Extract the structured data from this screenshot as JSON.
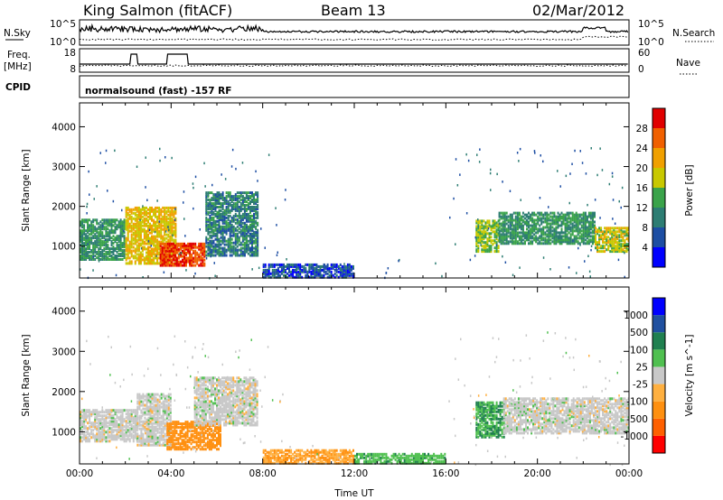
{
  "header": {
    "station": "King Salmon (fitACF)",
    "beam": "Beam 13",
    "date": "02/Mar/2012"
  },
  "top_panel": {
    "left_label": "N.Sky",
    "right_label": "N.Search",
    "left_ticks": [
      "10^5",
      "10^0"
    ],
    "right_ticks": [
      "10^5",
      "10^0"
    ]
  },
  "freq_panel": {
    "left_label_line1": "Freq.",
    "left_label_line2": "[MHz]",
    "right_label": "Nave",
    "left_ticks": [
      "18",
      "8"
    ],
    "right_ticks": [
      "60",
      "0"
    ]
  },
  "cpid_panel": {
    "label": "CPID",
    "mode": "normalsound (fast) -157 RF"
  },
  "chart_data": [
    {
      "type": "heatmap",
      "name": "Power",
      "ylabel": "Slant Range [km]",
      "ylim": [
        200,
        4600
      ],
      "yticks": [
        1000,
        2000,
        3000,
        4000
      ],
      "xlim": [
        0,
        24
      ],
      "colorbar_label": "Power [dB]",
      "colorbar_ticks": [
        "28",
        "24",
        "20",
        "16",
        "12",
        "8",
        "4"
      ],
      "colorbar_colors": [
        "#0000ff",
        "#1d4ea3",
        "#2d7d73",
        "#3aa34a",
        "#c8c800",
        "#f0a000",
        "#f06000",
        "#e00000"
      ],
      "colorbar_range": [
        0,
        32
      ],
      "echo_regions": [
        {
          "t0": 0.0,
          "t1": 2.0,
          "r0": 700,
          "r1": 1700,
          "level": 12
        },
        {
          "t0": 2.0,
          "t1": 4.2,
          "r0": 600,
          "r1": 2000,
          "level": 20
        },
        {
          "t0": 3.5,
          "t1": 5.5,
          "r0": 550,
          "r1": 1100,
          "level": 28
        },
        {
          "t0": 5.5,
          "t1": 7.8,
          "r0": 800,
          "r1": 2400,
          "level": 10
        },
        {
          "t0": 8.0,
          "t1": 12.0,
          "r0": 250,
          "r1": 600,
          "level": 6
        },
        {
          "t0": 17.3,
          "t1": 18.3,
          "r0": 900,
          "r1": 1700,
          "level": 16
        },
        {
          "t0": 18.3,
          "t1": 22.5,
          "r0": 1100,
          "r1": 1900,
          "level": 12
        },
        {
          "t0": 22.5,
          "t1": 24.0,
          "r0": 900,
          "r1": 1500,
          "level": 18
        }
      ]
    },
    {
      "type": "heatmap",
      "name": "Velocity",
      "ylabel": "Slant Range [km]",
      "ylim": [
        200,
        4600
      ],
      "yticks": [
        1000,
        2000,
        3000,
        4000
      ],
      "xlim": [
        0,
        24
      ],
      "xticks": [
        "00:00",
        "04:00",
        "08:00",
        "12:00",
        "16:00",
        "20:00",
        "00:00"
      ],
      "xlabel": "Time UT",
      "colorbar_label": "Velocity [m s^-1]",
      "colorbar_ticks": [
        "1000",
        "500",
        "100",
        "25",
        "-25",
        "-100",
        "-500",
        "-1000"
      ],
      "colorbar_colors": [
        "#ff0000",
        "#ff6000",
        "#ff9010",
        "#ffb040",
        "#c8c8c8",
        "#50c050",
        "#208050",
        "#2050a0",
        "#0000ff"
      ],
      "echo_regions": [
        {
          "t0": 0.0,
          "t1": 2.5,
          "r0": 800,
          "r1": 1600,
          "level": 0
        },
        {
          "t0": 2.5,
          "t1": 4.0,
          "r0": 700,
          "r1": 2000,
          "level": 0
        },
        {
          "t0": 3.8,
          "t1": 6.2,
          "r0": 600,
          "r1": 1300,
          "level": -300
        },
        {
          "t0": 5.0,
          "t1": 7.8,
          "r0": 1200,
          "r1": 2400,
          "level": 0
        },
        {
          "t0": 8.0,
          "t1": 12.0,
          "r0": 250,
          "r1": 600,
          "level": -100
        },
        {
          "t0": 12.0,
          "t1": 16.0,
          "r0": 250,
          "r1": 500,
          "level": 80
        },
        {
          "t0": 17.3,
          "t1": 18.5,
          "r0": 900,
          "r1": 1800,
          "level": 100
        },
        {
          "t0": 18.5,
          "t1": 24.0,
          "r0": 1000,
          "r1": 1900,
          "level": 0
        }
      ]
    }
  ]
}
